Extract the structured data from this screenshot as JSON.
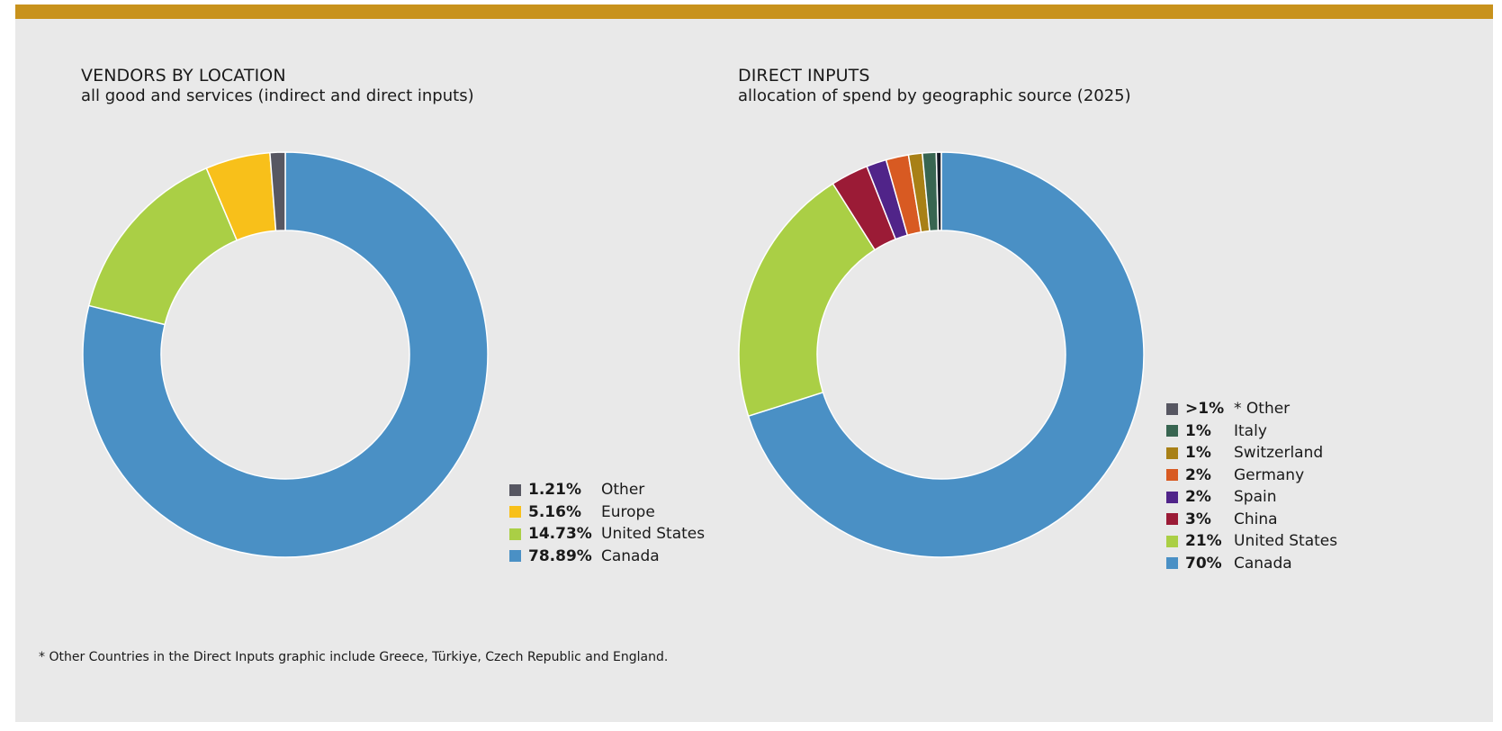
{
  "colors": {
    "panel_bg": "#e9e9e9",
    "top_bar": "#c8921c",
    "slice_border": "#ffffff"
  },
  "chart_data": [
    {
      "type": "pie",
      "variant": "donut",
      "title": "VENDORS BY LOCATION",
      "subtitle": "all good and services (indirect and direct inputs)",
      "legend_position": "bottom-right",
      "slices": [
        {
          "label": "Canada",
          "value": 78.89,
          "display": "78.89%",
          "color": "#4a90c5"
        },
        {
          "label": "United States",
          "value": 14.73,
          "display": "14.73%",
          "color": "#aacf45"
        },
        {
          "label": "Europe",
          "value": 5.16,
          "display": "5.16%",
          "color": "#f8c01a"
        },
        {
          "label": "Other",
          "value": 1.21,
          "display": "1.21%",
          "color": "#575762"
        }
      ],
      "legend": [
        {
          "pct": "1.21%",
          "label": "Other",
          "color": "#575762"
        },
        {
          "pct": "5.16%",
          "label": "Europe",
          "color": "#f8c01a"
        },
        {
          "pct": "14.73%",
          "label": "United States",
          "color": "#aacf45"
        },
        {
          "pct": "78.89%",
          "label": "Canada",
          "color": "#4a90c5"
        }
      ]
    },
    {
      "type": "pie",
      "variant": "donut",
      "title": "DIRECT INPUTS",
      "subtitle": "allocation of spend by geographic source (2025)",
      "legend_position": "bottom-right",
      "slices": [
        {
          "label": "Canada",
          "value": 70.1,
          "display": "70%",
          "color": "#4a90c5"
        },
        {
          "label": "United States",
          "value": 20.9,
          "display": "21%",
          "color": "#aacf45"
        },
        {
          "label": "China",
          "value": 3.0,
          "display": "3%",
          "color": "#9b1b36"
        },
        {
          "label": "Spain",
          "value": 1.6,
          "display": "2%",
          "color": "#502489"
        },
        {
          "label": "Germany",
          "value": 1.8,
          "display": "2%",
          "color": "#d85a22"
        },
        {
          "label": "Switzerland",
          "value": 1.1,
          "display": "1%",
          "color": "#a88016"
        },
        {
          "label": "Italy",
          "value": 1.1,
          "display": "1%",
          "color": "#386551"
        },
        {
          "label": "* Other",
          "value": 0.4,
          "display": ">1%",
          "color": "#161b27"
        }
      ],
      "legend": [
        {
          "pct": ">1%",
          "label": "* Other",
          "color": "#575762"
        },
        {
          "pct": "1%",
          "label": "Italy",
          "color": "#386551"
        },
        {
          "pct": "1%",
          "label": "Switzerland",
          "color": "#a88016"
        },
        {
          "pct": "2%",
          "label": "Germany",
          "color": "#d85a22"
        },
        {
          "pct": "2%",
          "label": "Spain",
          "color": "#502489"
        },
        {
          "pct": "3%",
          "label": "China",
          "color": "#9b1b36"
        },
        {
          "pct": "21%",
          "label": "United States",
          "color": "#aacf45"
        },
        {
          "pct": "70%",
          "label": "Canada",
          "color": "#4a90c5"
        }
      ]
    }
  ],
  "footnote": "* Other Countries in the Direct Inputs graphic include Greece, Türkiye, Czech Republic and England."
}
